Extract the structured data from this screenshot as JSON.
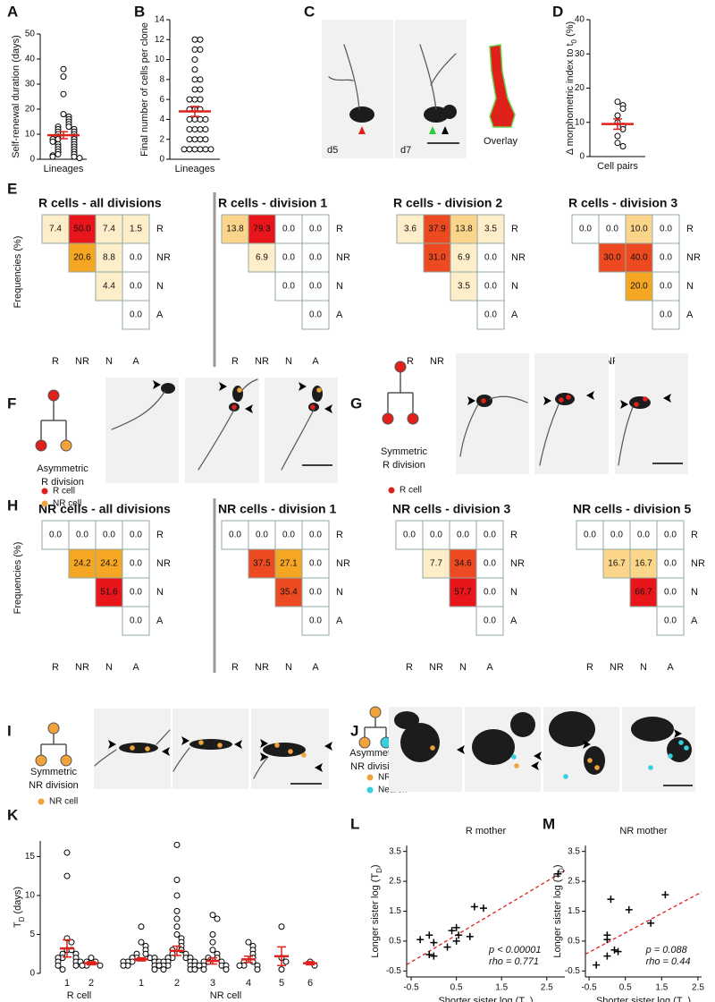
{
  "panel_labels": [
    "A",
    "B",
    "C",
    "D",
    "E",
    "F",
    "G",
    "H",
    "I",
    "J",
    "K",
    "L",
    "M"
  ],
  "chart_data": [
    {
      "type": "strip",
      "ylabel": "Self-renewal duration (days)",
      "categories": [
        "Lineages"
      ],
      "values": [
        36,
        33,
        26,
        18,
        17,
        16,
        15,
        14,
        13,
        13,
        12,
        12,
        11,
        11,
        10,
        10,
        9,
        9,
        8,
        8,
        8,
        7,
        7,
        6,
        6,
        5,
        5,
        4,
        4,
        3,
        3,
        2,
        2,
        1.5,
        1,
        1,
        0.5
      ],
      "mean": 9.6,
      "error": 1.4,
      "color": "#e0201b",
      "ylim": [
        0,
        50
      ],
      "yticks": [
        0,
        10,
        20,
        30,
        40,
        50
      ]
    },
    {
      "type": "strip",
      "ylabel": "Final number of cells per clone",
      "categories": [
        "Lineages"
      ],
      "values": [
        12,
        12,
        11,
        11,
        10,
        9,
        8,
        8,
        7,
        7,
        6,
        6,
        6,
        5,
        5,
        5,
        4,
        4,
        4,
        4,
        3,
        3,
        3,
        3,
        2,
        2,
        2,
        2,
        1,
        1,
        1,
        1,
        1,
        1
      ],
      "mean": 4.8,
      "error": 0.5,
      "color": "#e0201b",
      "ylim": [
        0,
        14
      ],
      "yticks": [
        0,
        2,
        4,
        6,
        8,
        10,
        12,
        14
      ]
    },
    {
      "type": "strip",
      "ylabel": [
        "Δ morphometric index to t",
        "0",
        " (%)"
      ],
      "categories": [
        "Cell pairs"
      ],
      "values": [
        16,
        15,
        14,
        12,
        10,
        9,
        8,
        6,
        4,
        3
      ],
      "mean": 9.5,
      "error": 1.5,
      "color": "#e0201b",
      "ylim": [
        0,
        40
      ],
      "yticks": [
        0,
        10,
        20,
        30,
        40
      ]
    },
    {
      "type": "grouped_strip",
      "ylabel": [
        "T",
        "D",
        " (days)"
      ],
      "color": "#e0201b",
      "ylim": [
        0,
        17
      ],
      "yticks": [
        0,
        5,
        10,
        15
      ],
      "groups": [
        {
          "name": "R cell",
          "categories": [
            "1",
            "2"
          ],
          "values": [
            [
              15.5,
              12.5,
              4.5,
              4,
              3,
              3,
              2.5,
              2.5,
              2,
              2,
              2,
              1.5,
              1.5,
              1.5,
              1,
              1,
              0.5
            ],
            [
              2,
              1.5,
              1.5,
              1,
              1,
              1
            ]
          ],
          "means": [
            3.2,
            1.3
          ],
          "errors": [
            1.1,
            0.2
          ]
        },
        {
          "name": "NR cell",
          "categories": [
            "1",
            "2",
            "3",
            "4",
            "5",
            "6"
          ],
          "values": [
            [
              6,
              4,
              3.5,
              3,
              2.5,
              2.5,
              2,
              2,
              2,
              2,
              1.5,
              1.5,
              1.5,
              1.5,
              1.5,
              1,
              1,
              1,
              1,
              1,
              0.5
            ],
            [
              16.5,
              12,
              10,
              8,
              7,
              6,
              5,
              4.5,
              4,
              3.5,
              3,
              3,
              2.5,
              2.5,
              2,
              2,
              2,
              2,
              1.5,
              1.5,
              1.5,
              1.5,
              1,
              1,
              1,
              1,
              1,
              0.5,
              0.5,
              0.5
            ],
            [
              7.5,
              7,
              5,
              4,
              3,
              2.5,
              2,
              2,
              1.5,
              1.5,
              1.5,
              1,
              1,
              1,
              1,
              0.5,
              0.5
            ],
            [
              4,
              3.5,
              3,
              2.5,
              2,
              1.5,
              1.5,
              1,
              1,
              1,
              0.5
            ],
            [
              6,
              2,
              1.5,
              0.5
            ],
            [
              1.5,
              1
            ]
          ],
          "means": [
            1.8,
            2.9,
            1.6,
            1.8,
            2.2,
            1.3
          ],
          "errors": [
            0.2,
            0.6,
            0.4,
            0.4,
            1.2,
            0.2
          ]
        }
      ]
    },
    {
      "type": "scatter",
      "title": "R mother",
      "xlabel": [
        "Shorter sister log (T",
        "D",
        ")"
      ],
      "ylabel": [
        "Longer sister log (T",
        "D",
        ")"
      ],
      "x": [
        2.75,
        0.9,
        1.1,
        -0.3,
        -0.1,
        0.4,
        0.5,
        0.55,
        0.8,
        0.5,
        0.0,
        -0.1,
        0.0,
        0.3
      ],
      "y": [
        2.75,
        1.65,
        1.6,
        0.55,
        0.7,
        0.85,
        0.95,
        0.7,
        0.65,
        0.5,
        0.45,
        0.05,
        0.0,
        0.3
      ],
      "trend": {
        "x": [
          -0.6,
          2.9
        ],
        "y": [
          -0.29,
          2.86
        ],
        "color": "#e0201b"
      },
      "annotations": [
        "p < 0.00001",
        "rho = 0.771"
      ],
      "xlim": [
        -0.6,
        2.9
      ],
      "ylim": [
        -0.7,
        3.7
      ],
      "xticks": [
        -0.5,
        0.5,
        1.5,
        2.5
      ],
      "yticks": [
        -0.5,
        0.5,
        1.5,
        2.5,
        3.5
      ]
    },
    {
      "type": "scatter",
      "title": "NR mother",
      "xlabel": [
        "Shorter sister log (T",
        "D",
        ")"
      ],
      "ylabel": [
        "Longer sister log (T",
        "D",
        ")"
      ],
      "x": [
        -0.3,
        0.0,
        0.0,
        0.0,
        0.1,
        0.2,
        0.3,
        0.6,
        1.2,
        1.6
      ],
      "y": [
        -0.3,
        0.55,
        0.7,
        0.0,
        1.9,
        0.2,
        0.15,
        1.55,
        1.1,
        2.05
      ],
      "trend": {
        "x": [
          -0.6,
          2.6
        ],
        "y": [
          0.06,
          2.14
        ],
        "color": "#e0201b"
      },
      "annotations": [
        "p = 0.088",
        "rho = 0.44"
      ],
      "xlim": [
        -0.6,
        2.6
      ],
      "ylim": [
        -0.7,
        3.7
      ],
      "xticks": [
        -0.5,
        0.5,
        1.5,
        2.5
      ],
      "yticks": [
        -0.5,
        0.5,
        1.5,
        2.5,
        3.5
      ]
    }
  ],
  "matrix_axes": {
    "rows": [
      "R",
      "NR",
      "N",
      "A"
    ],
    "cols": [
      "R",
      "NR",
      "N",
      "A"
    ]
  },
  "matrices": [
    {
      "title": "R cells - all divisions",
      "ylabel": "Frequencies (%)",
      "cells": [
        [
          "7.4",
          "50.0",
          "7.4",
          "1.5"
        ],
        [
          "20.6",
          "8.8",
          "0.0"
        ],
        [
          "4.4",
          "0.0"
        ],
        [
          "0.0"
        ]
      ]
    },
    {
      "title": "R cells - division 1",
      "cells": [
        [
          "13.8",
          "79.3",
          "0.0",
          "0.0"
        ],
        [
          "6.9",
          "0.0",
          "0.0"
        ],
        [
          "0.0",
          "0.0"
        ],
        [
          "0.0"
        ]
      ]
    },
    {
      "title": "R cells - division 2",
      "cells": [
        [
          "3.6",
          "37.9",
          "13.8",
          "3.5"
        ],
        [
          "31.0",
          "6.9",
          "0.0"
        ],
        [
          "3.5",
          "0.0"
        ],
        [
          "0.0"
        ]
      ]
    },
    {
      "title": "R cells - division 3",
      "cells": [
        [
          "0.0",
          "0.0",
          "10.0",
          "0.0"
        ],
        [
          "30.0",
          "40.0",
          "0.0"
        ],
        [
          "20.0",
          "0.0"
        ],
        [
          "0.0"
        ]
      ]
    },
    {
      "title": "NR cells - all divisions",
      "ylabel": "Frequencies (%)",
      "cells": [
        [
          "0.0",
          "0.0",
          "0.0",
          "0.0"
        ],
        [
          "24.2",
          "24.2",
          "0.0"
        ],
        [
          "51.6",
          "0.0"
        ],
        [
          "0.0"
        ]
      ]
    },
    {
      "title": "NR cells - division 1",
      "cells": [
        [
          "0.0",
          "0.0",
          "0.0",
          "0.0"
        ],
        [
          "37.5",
          "27.1",
          "0.0"
        ],
        [
          "35.4",
          "0.0"
        ],
        [
          "0.0"
        ]
      ]
    },
    {
      "title": "NR cells - division 3",
      "cells": [
        [
          "0.0",
          "0.0",
          "0.0",
          "0.0"
        ],
        [
          "7.7",
          "34.6",
          "0.0"
        ],
        [
          "57.7",
          "0.0"
        ],
        [
          "0.0"
        ]
      ]
    },
    {
      "title": "NR cells - division 5",
      "cells": [
        [
          "0.0",
          "0.0",
          "0.0",
          "0.0"
        ],
        [
          "16.7",
          "16.7",
          "0.0"
        ],
        [
          "66.7",
          "0.0"
        ],
        [
          "0.0"
        ]
      ]
    }
  ],
  "image_panels": {
    "C": {
      "labels": [
        "d5",
        "d7",
        "Overlay"
      ]
    },
    "F": {
      "caption": [
        "Asymmetric",
        "R division"
      ],
      "legend": [
        {
          "name": "R cell",
          "color": "#e0201b"
        },
        {
          "name": "NR cell",
          "color": "#f2a23a"
        }
      ]
    },
    "G": {
      "caption": [
        "Symmetric",
        "R division"
      ],
      "legend": [
        {
          "name": "R cell",
          "color": "#e0201b"
        }
      ]
    },
    "I": {
      "caption": [
        "Symmetric",
        "NR division"
      ],
      "legend": [
        {
          "name": "NR cell",
          "color": "#f2a23a"
        }
      ]
    },
    "J": {
      "caption": [
        "Asymmetric",
        "NR division"
      ],
      "legend": [
        {
          "name": "NR cell",
          "color": "#f2a23a"
        },
        {
          "name": "Neuron",
          "color": "#34d0e0"
        }
      ]
    }
  }
}
